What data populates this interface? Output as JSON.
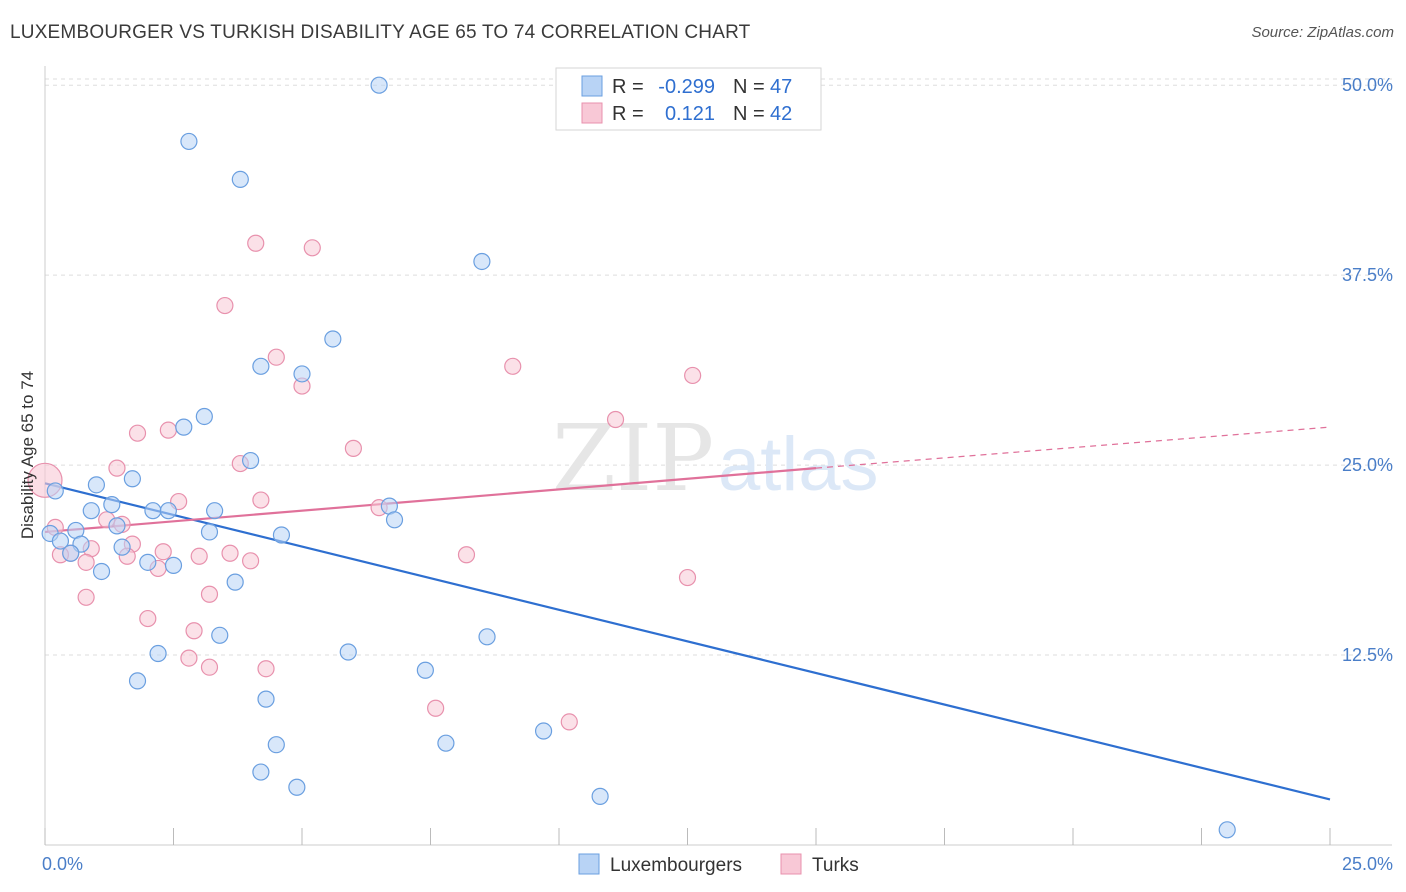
{
  "title": "LUXEMBOURGER VS TURKISH DISABILITY AGE 65 TO 74 CORRELATION CHART",
  "source": "Source: ZipAtlas.com",
  "colors": {
    "blue_fill": "#b8d3f5",
    "blue_stroke": "#6a9fe0",
    "blue_line": "#2e6fd0",
    "pink_fill": "#f8c8d6",
    "pink_stroke": "#e891ad",
    "pink_line": "#e0719a",
    "grid": "#dddddd",
    "axis_text": "#4a7ec8"
  },
  "watermark": {
    "zip": "ZIP",
    "atlas": "atlas"
  },
  "legend": {
    "rows": [
      {
        "r_label": "R =",
        "r_value": "-0.299",
        "n_label": "N =",
        "n_value": "47"
      },
      {
        "r_label": "R =",
        "r_value": "0.121",
        "n_label": "N =",
        "n_value": "42"
      }
    ]
  },
  "chart_data": {
    "type": "scatter",
    "title": "LUXEMBOURGER VS TURKISH DISABILITY AGE 65 TO 74 CORRELATION CHART",
    "xlabel": "",
    "ylabel": "Disability Age 65 to 74",
    "xlim": [
      0,
      25
    ],
    "ylim": [
      0,
      51
    ],
    "x_ticks": [
      "0.0%",
      "25.0%"
    ],
    "y_ticks": [
      {
        "value": 12.5,
        "label": "12.5%"
      },
      {
        "value": 25.0,
        "label": "25.0%"
      },
      {
        "value": 37.5,
        "label": "37.5%"
      },
      {
        "value": 50.0,
        "label": "50.0%"
      }
    ],
    "grid": true,
    "legend_placement": "top-center",
    "series": [
      {
        "name": "Luxembourgers",
        "r": -0.299,
        "n": 47,
        "trend": {
          "x0": 0,
          "y0": 23.8,
          "x1": 25,
          "y1": 3.0
        },
        "points": [
          [
            6.5,
            50.0
          ],
          [
            2.8,
            46.3
          ],
          [
            3.8,
            43.8
          ],
          [
            8.5,
            38.4
          ],
          [
            5.6,
            33.3
          ],
          [
            4.2,
            31.5
          ],
          [
            5.0,
            31.0
          ],
          [
            3.1,
            28.2
          ],
          [
            2.7,
            27.5
          ],
          [
            4.0,
            25.3
          ],
          [
            1.7,
            24.1
          ],
          [
            1.0,
            23.7
          ],
          [
            0.2,
            23.3
          ],
          [
            1.3,
            22.4
          ],
          [
            0.9,
            22.0
          ],
          [
            2.1,
            22.0
          ],
          [
            2.4,
            22.0
          ],
          [
            3.3,
            22.0
          ],
          [
            6.7,
            22.3
          ],
          [
            6.8,
            21.4
          ],
          [
            1.4,
            21.0
          ],
          [
            0.6,
            20.7
          ],
          [
            3.2,
            20.6
          ],
          [
            4.6,
            20.4
          ],
          [
            0.1,
            20.5
          ],
          [
            0.3,
            20.0
          ],
          [
            0.7,
            19.8
          ],
          [
            1.5,
            19.6
          ],
          [
            0.5,
            19.2
          ],
          [
            2.0,
            18.6
          ],
          [
            2.5,
            18.4
          ],
          [
            1.1,
            18.0
          ],
          [
            3.7,
            17.3
          ],
          [
            3.4,
            13.8
          ],
          [
            8.6,
            13.7
          ],
          [
            2.2,
            12.6
          ],
          [
            5.9,
            12.7
          ],
          [
            7.4,
            11.5
          ],
          [
            1.8,
            10.8
          ],
          [
            4.3,
            9.6
          ],
          [
            9.7,
            7.5
          ],
          [
            4.5,
            6.6
          ],
          [
            7.8,
            6.7
          ],
          [
            4.2,
            4.8
          ],
          [
            4.9,
            3.8
          ],
          [
            10.8,
            3.2
          ],
          [
            23.0,
            1.0
          ]
        ]
      },
      {
        "name": "Turks",
        "r": 0.121,
        "n": 42,
        "trend": {
          "x0": 0,
          "y0": 20.6,
          "x1": 15.0,
          "y1": 24.8
        },
        "trend_dashed": {
          "x0": 15.0,
          "y0": 24.8,
          "x1": 25,
          "y1": 27.5
        },
        "points": [
          [
            0.0,
            24.0
          ],
          [
            4.1,
            39.6
          ],
          [
            5.2,
            39.3
          ],
          [
            3.5,
            35.5
          ],
          [
            4.5,
            32.1
          ],
          [
            9.1,
            31.5
          ],
          [
            12.6,
            30.9
          ],
          [
            5.0,
            30.2
          ],
          [
            11.1,
            28.0
          ],
          [
            2.4,
            27.3
          ],
          [
            1.8,
            27.1
          ],
          [
            6.0,
            26.1
          ],
          [
            3.8,
            25.1
          ],
          [
            1.4,
            24.8
          ],
          [
            4.2,
            22.7
          ],
          [
            2.6,
            22.6
          ],
          [
            6.5,
            22.2
          ],
          [
            1.2,
            21.4
          ],
          [
            1.5,
            21.1
          ],
          [
            0.2,
            20.9
          ],
          [
            0.5,
            19.2
          ],
          [
            0.9,
            19.5
          ],
          [
            1.7,
            19.8
          ],
          [
            2.3,
            19.3
          ],
          [
            3.0,
            19.0
          ],
          [
            3.6,
            19.2
          ],
          [
            4.0,
            18.7
          ],
          [
            8.2,
            19.1
          ],
          [
            1.6,
            19.0
          ],
          [
            0.8,
            18.6
          ],
          [
            2.2,
            18.2
          ],
          [
            12.5,
            17.6
          ],
          [
            0.8,
            16.3
          ],
          [
            3.2,
            16.5
          ],
          [
            2.0,
            14.9
          ],
          [
            2.9,
            14.1
          ],
          [
            2.8,
            12.3
          ],
          [
            3.2,
            11.7
          ],
          [
            4.3,
            11.6
          ],
          [
            7.6,
            9.0
          ],
          [
            10.2,
            8.1
          ],
          [
            0.3,
            19.1
          ]
        ]
      }
    ]
  },
  "bottom_legend": [
    "Luxembourgers",
    "Turks"
  ]
}
